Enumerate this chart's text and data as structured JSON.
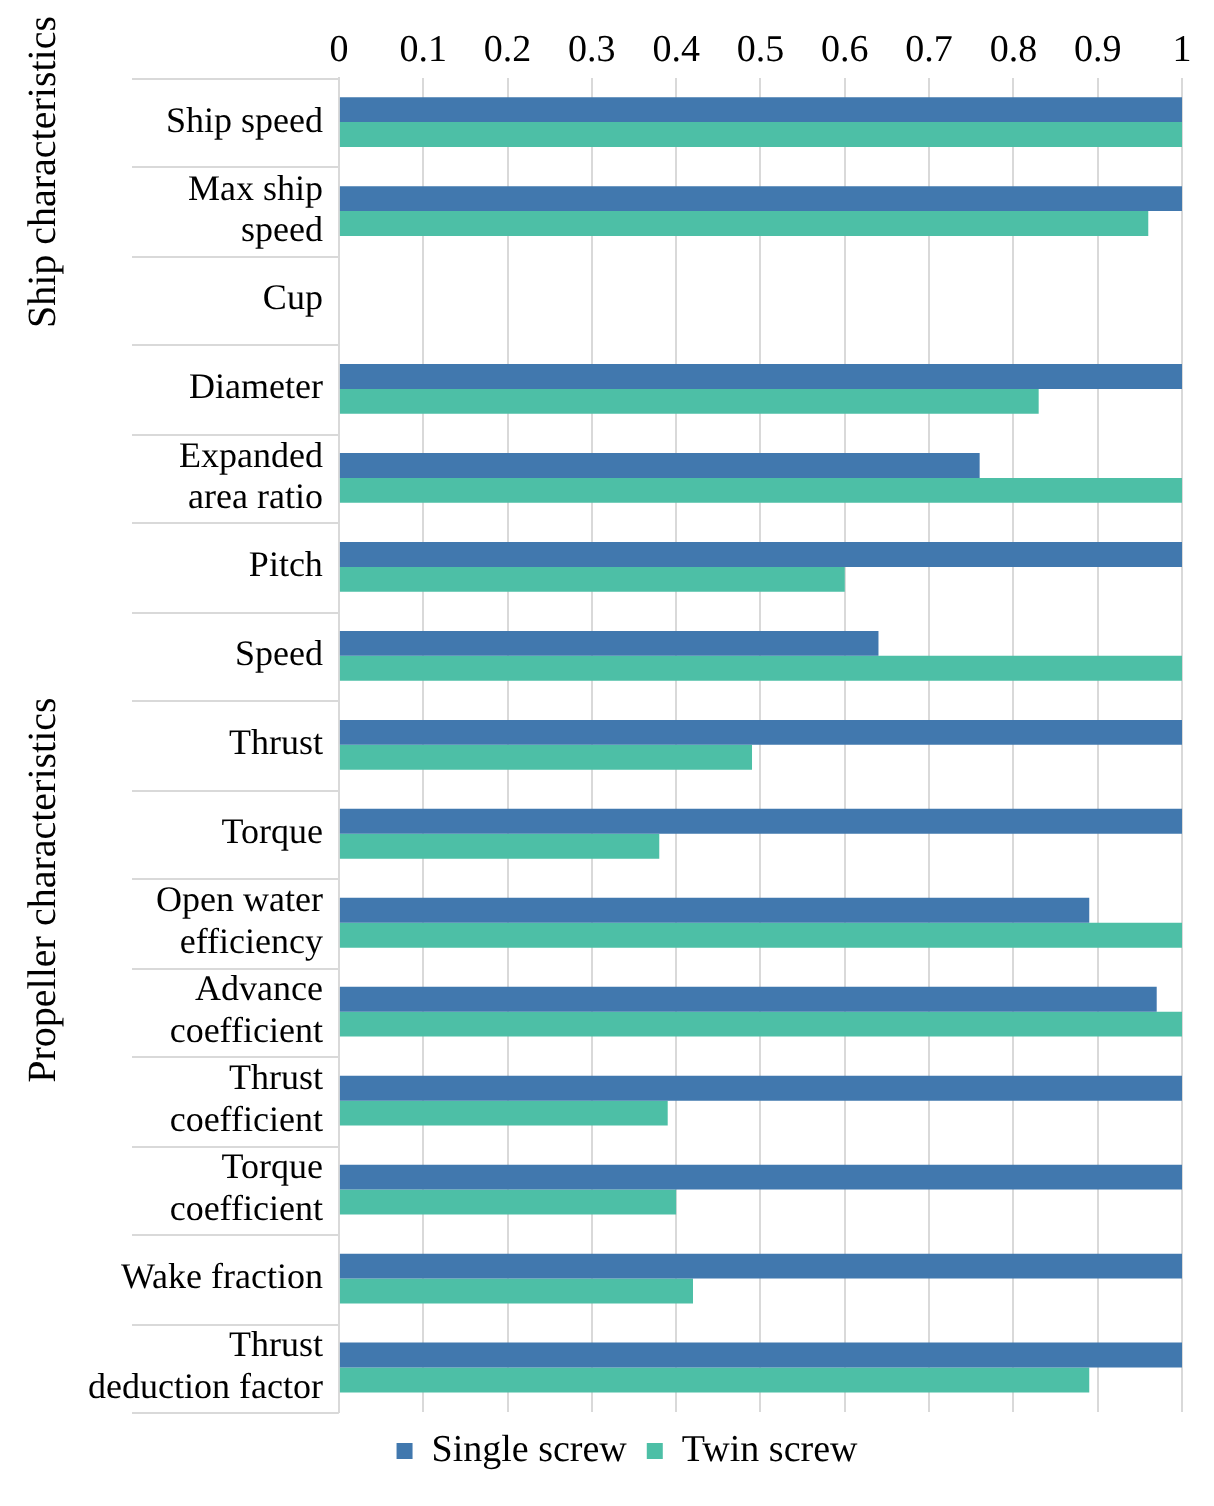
{
  "chart_data": {
    "type": "bar",
    "orientation": "horizontal",
    "categories": [
      "Ship speed",
      "Max ship speed",
      "Cup",
      "Diameter",
      "Expanded area ratio",
      "Pitch",
      "Speed",
      "Thrust",
      "Torque",
      "Open water efficiency",
      "Advance coefficient",
      "Thrust coefficient",
      "Torque coefficient",
      "Wake fraction",
      "Thrust deduction factor"
    ],
    "series": [
      {
        "name": "Single screw",
        "color": "#4178ae",
        "values": [
          1,
          1,
          null,
          1,
          0.76,
          1,
          0.64,
          1,
          1,
          0.89,
          0.97,
          1,
          1,
          1,
          1
        ]
      },
      {
        "name": "Twin screw",
        "color": "#4dbfa6",
        "values": [
          1,
          0.96,
          null,
          0.83,
          1,
          0.6,
          1,
          0.49,
          0.38,
          1,
          1,
          0.39,
          0.4,
          0.42,
          0.89
        ]
      }
    ],
    "xlim": [
      0,
      1
    ],
    "xticks": [
      0,
      0.1,
      0.2,
      0.3,
      0.4,
      0.5,
      0.6,
      0.7,
      0.8,
      0.9,
      1
    ],
    "grid": "x",
    "legend": "bottom",
    "annotations": [
      "Ship characteristics",
      "Propeller characteristics"
    ]
  }
}
